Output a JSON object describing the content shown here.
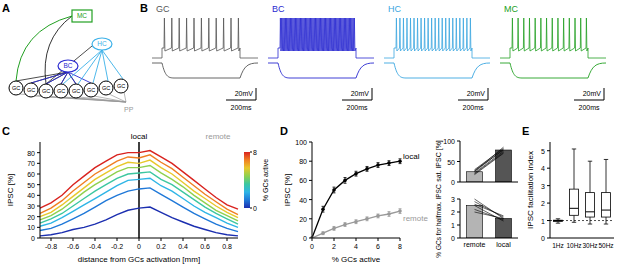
{
  "diagram": {
    "title": "A",
    "nodes": [
      {
        "label": "MC",
        "color": "#22a022"
      },
      {
        "label": "HC",
        "color": "#3ab0e8"
      },
      {
        "label": "BC",
        "color": "#2a2ad0"
      },
      {
        "label": "GC",
        "color": "#000000"
      },
      {
        "label": "GC",
        "color": "#000000"
      },
      {
        "label": "GC",
        "color": "#000000"
      },
      {
        "label": "GC",
        "color": "#000000"
      },
      {
        "label": "GC",
        "color": "#000000"
      },
      {
        "label": "GC",
        "color": "#000000"
      },
      {
        "label": "GC",
        "color": "#000000"
      },
      {
        "label": "GC",
        "color": "#000000"
      }
    ],
    "input": {
      "label": "PP",
      "color": "#999999"
    }
  },
  "traces": {
    "title": "B",
    "cells": [
      {
        "label": "GC",
        "color": "#555555",
        "spikes": 11
      },
      {
        "label": "BC",
        "color": "#2a2ad0",
        "spikes": 60
      },
      {
        "label": "HC",
        "color": "#3aa6e0",
        "spikes": 22
      },
      {
        "label": "MC",
        "color": "#22a022",
        "spikes": 14
      }
    ],
    "scale_v": "20mV",
    "scale_t": "200ms"
  },
  "chart_data": [
    {
      "type": "line",
      "title": "C",
      "x_label": "distance from GCs activation [mm]",
      "y_label": "IPSC [%]",
      "x": [
        -0.9,
        -0.8,
        -0.7,
        -0.6,
        -0.5,
        -0.4,
        -0.3,
        -0.2,
        -0.1,
        0,
        0.1,
        0.2,
        0.3,
        0.4,
        0.5,
        0.6,
        0.7,
        0.8,
        0.9
      ],
      "xlim": [
        -0.9,
        0.9
      ],
      "xticks": [
        -0.8,
        -0.6,
        -0.4,
        -0.2,
        0,
        0.2,
        0.4,
        0.6,
        0.8
      ],
      "ylim": [
        0,
        90
      ],
      "yticks": [
        0,
        10,
        20,
        30,
        40,
        50,
        60,
        70,
        80
      ],
      "reference": 0,
      "annotations": [
        "local",
        "remote"
      ],
      "colorbar": {
        "label": "% GCs active",
        "range": [
          0,
          8
        ],
        "ticks": [
          0,
          8
        ]
      },
      "series": [
        {
          "color": "#1c2fb0",
          "values": [
            2,
            3,
            5,
            8,
            10,
            13,
            17,
            22,
            26,
            28,
            29,
            24,
            19,
            15,
            11,
            8,
            5,
            3,
            2
          ]
        },
        {
          "color": "#1f78d8",
          "values": [
            7,
            9,
            13,
            18,
            23,
            29,
            35,
            40,
            44,
            46,
            47,
            41,
            35,
            29,
            23,
            18,
            13,
            9,
            6
          ]
        },
        {
          "color": "#2eb5e6",
          "values": [
            11,
            14,
            19,
            25,
            31,
            37,
            43,
            49,
            54,
            55,
            56,
            49,
            44,
            37,
            30,
            24,
            19,
            14,
            10
          ]
        },
        {
          "color": "#3cc7a0",
          "values": [
            14,
            18,
            23,
            30,
            37,
            44,
            50,
            56,
            60,
            61,
            62,
            55,
            50,
            43,
            36,
            29,
            23,
            18,
            13
          ]
        },
        {
          "color": "#8fd14f",
          "values": [
            17,
            21,
            27,
            35,
            43,
            50,
            56,
            62,
            66,
            66,
            68,
            61,
            55,
            48,
            40,
            33,
            26,
            21,
            16
          ]
        },
        {
          "color": "#e8c82b",
          "values": [
            20,
            24,
            31,
            39,
            47,
            55,
            61,
            67,
            71,
            70,
            73,
            66,
            60,
            52,
            44,
            37,
            30,
            24,
            19
          ]
        },
        {
          "color": "#f07f22",
          "values": [
            23,
            28,
            35,
            44,
            52,
            60,
            66,
            72,
            76,
            75,
            78,
            71,
            65,
            57,
            49,
            41,
            34,
            27,
            22
          ]
        },
        {
          "color": "#d9231f",
          "values": [
            28,
            33,
            40,
            50,
            58,
            66,
            72,
            78,
            80,
            80,
            82,
            76,
            70,
            62,
            54,
            46,
            38,
            31,
            27
          ]
        }
      ]
    },
    {
      "type": "line",
      "title": "D",
      "x_label": "% GCs active",
      "y_label": "IPSC [%]",
      "marker": "circle",
      "x": [
        0,
        1,
        2,
        3,
        4,
        5,
        6,
        7,
        8
      ],
      "xlim": [
        0,
        8
      ],
      "xticks": [
        0,
        2,
        4,
        6,
        8
      ],
      "ylim": [
        0,
        100
      ],
      "yticks": [
        0,
        20,
        40,
        60,
        80,
        100
      ],
      "series": [
        {
          "name": "local",
          "color": "#000000",
          "values": [
            0,
            30,
            50,
            60,
            67,
            72,
            76,
            78,
            80
          ],
          "errors": [
            0,
            3,
            3,
            3,
            2.5,
            2.5,
            2.5,
            2.5,
            2.5
          ]
        },
        {
          "name": "remote",
          "color": "#999999",
          "values": [
            0,
            5,
            10,
            14,
            17,
            20,
            23,
            25,
            28
          ],
          "errors": [
            0,
            1.5,
            2,
            2,
            2,
            2,
            2,
            2.5,
            2.5
          ]
        }
      ]
    },
    {
      "type": "bar",
      "y_label": "sat. IPSC [%]",
      "categories": [
        "remote",
        "local"
      ],
      "values": [
        25,
        78
      ],
      "colors": [
        "#b4b4b4",
        "#555555"
      ],
      "ylim": [
        0,
        100
      ],
      "yticks": [
        0,
        50,
        100
      ],
      "tick_labels": "y",
      "pairs": [
        [
          18,
          70
        ],
        [
          22,
          75
        ],
        [
          25,
          80
        ],
        [
          28,
          78
        ],
        [
          30,
          82
        ],
        [
          20,
          72
        ],
        [
          26,
          85
        ]
      ]
    },
    {
      "type": "bar",
      "y_label": "% GCs for halfmax. IPSC",
      "categories": [
        "remote",
        "local"
      ],
      "values": [
        2.5,
        1.5
      ],
      "colors": [
        "#b4b4b4",
        "#555555"
      ],
      "ylim": [
        0,
        3
      ],
      "yticks": [
        0,
        1,
        2,
        3
      ],
      "pairs": [
        [
          2.2,
          1.4
        ],
        [
          2.8,
          1.6
        ],
        [
          3.0,
          1.5
        ],
        [
          2.5,
          1.3
        ],
        [
          2.0,
          1.5
        ],
        [
          2.6,
          1.7
        ]
      ]
    },
    {
      "type": "box",
      "title": "E",
      "y_label": "IPSC facilitation index",
      "categories": [
        "1Hz",
        "10Hz",
        "30Hz",
        "50Hz"
      ],
      "min": [
        0.85,
        0.9,
        0.8,
        0.8
      ],
      "q1": [
        0.95,
        1.3,
        1.2,
        1.2
      ],
      "median": [
        1.0,
        1.7,
        1.5,
        1.6
      ],
      "q3": [
        1.02,
        2.8,
        2.6,
        2.6
      ],
      "max": [
        1.1,
        5.1,
        4.4,
        4.5
      ],
      "ylim": [
        0,
        5.5
      ],
      "yticks": [
        0,
        1,
        2,
        3,
        4,
        5
      ],
      "reference": 1
    }
  ]
}
